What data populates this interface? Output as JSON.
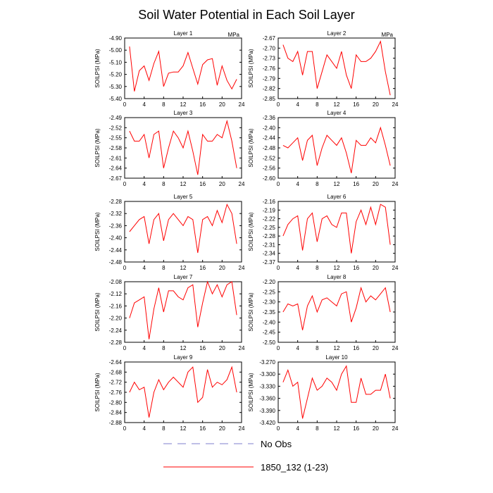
{
  "figure": {
    "title": "Soil Water Potential in Each Soil Layer",
    "legend": [
      {
        "label": "No Obs",
        "color": "#7f7fcc",
        "style": "dashed"
      },
      {
        "label": "1850_132 (1-23)",
        "color": "#ff0000",
        "style": "solid"
      }
    ]
  },
  "chart_data": [
    {
      "type": "line",
      "title": "Layer 1",
      "units": "MPa",
      "ylabel": "SOILPSI  (MPa)",
      "xlim": [
        0,
        24
      ],
      "ylim": [
        -5.4,
        -4.9
      ],
      "xticks": [
        "0",
        "4",
        "8",
        "12",
        "16",
        "20",
        "24"
      ],
      "yticks": [
        "-4.90",
        "-5.00",
        "-5.10",
        "-5.20",
        "-5.30",
        "-5.40"
      ],
      "series": [
        {
          "x": [
            1,
            2,
            3,
            4,
            5,
            6,
            7,
            8,
            9,
            10,
            11,
            12,
            13,
            14,
            15,
            16,
            17,
            18,
            19,
            20,
            21,
            22,
            23
          ],
          "y": [
            -4.97,
            -5.34,
            -5.17,
            -5.13,
            -5.25,
            -5.11,
            -5.01,
            -5.3,
            -5.19,
            -5.18,
            -5.18,
            -5.13,
            -5.02,
            -5.15,
            -5.28,
            -5.12,
            -5.08,
            -5.07,
            -5.29,
            -5.13,
            -5.25,
            -5.32,
            -5.24
          ],
          "color": "#ff0000"
        }
      ]
    },
    {
      "type": "line",
      "title": "Layer 2",
      "units": "MPa",
      "ylabel": "SOILPSI  (MPa)",
      "xlim": [
        0,
        24
      ],
      "ylim": [
        -2.85,
        -2.67
      ],
      "xticks": [
        "0",
        "4",
        "8",
        "12",
        "16",
        "20",
        "24"
      ],
      "yticks": [
        "-2.67",
        "-2.70",
        "-2.73",
        "-2.76",
        "-2.79",
        "-2.82",
        "-2.85"
      ],
      "series": [
        {
          "x": [
            1,
            2,
            3,
            4,
            5,
            6,
            7,
            8,
            9,
            10,
            11,
            12,
            13,
            14,
            15,
            16,
            17,
            18,
            19,
            20,
            21,
            22,
            23
          ],
          "y": [
            -2.69,
            -2.73,
            -2.74,
            -2.71,
            -2.78,
            -2.71,
            -2.71,
            -2.82,
            -2.77,
            -2.72,
            -2.74,
            -2.76,
            -2.71,
            -2.78,
            -2.82,
            -2.72,
            -2.74,
            -2.74,
            -2.73,
            -2.71,
            -2.68,
            -2.77,
            -2.84
          ],
          "color": "#ff0000"
        }
      ]
    },
    {
      "type": "line",
      "title": "Layer 3",
      "units": "",
      "ylabel": "SOILPSI  (MPa)",
      "xlim": [
        0,
        24
      ],
      "ylim": [
        -2.67,
        -2.49
      ],
      "xticks": [
        "0",
        "4",
        "8",
        "12",
        "16",
        "20",
        "24"
      ],
      "yticks": [
        "-2.49",
        "-2.52",
        "-2.55",
        "-2.58",
        "-2.61",
        "-2.64",
        "-2.67"
      ],
      "series": [
        {
          "x": [
            1,
            2,
            3,
            4,
            5,
            6,
            7,
            8,
            9,
            10,
            11,
            12,
            13,
            14,
            15,
            16,
            17,
            18,
            19,
            20,
            21,
            22,
            23
          ],
          "y": [
            -2.53,
            -2.56,
            -2.56,
            -2.54,
            -2.61,
            -2.54,
            -2.53,
            -2.64,
            -2.58,
            -2.53,
            -2.55,
            -2.58,
            -2.53,
            -2.59,
            -2.66,
            -2.54,
            -2.56,
            -2.56,
            -2.54,
            -2.55,
            -2.5,
            -2.56,
            -2.64
          ],
          "color": "#ff0000"
        }
      ]
    },
    {
      "type": "line",
      "title": "Layer 4",
      "units": "",
      "ylabel": "SOILPSI  (MPa)",
      "xlim": [
        0,
        24
      ],
      "ylim": [
        -2.6,
        -2.36
      ],
      "xticks": [
        "0",
        "4",
        "8",
        "12",
        "16",
        "20",
        "24"
      ],
      "yticks": [
        "-2.36",
        "-2.40",
        "-2.44",
        "-2.48",
        "-2.52",
        "-2.56",
        "-2.60"
      ],
      "series": [
        {
          "x": [
            1,
            2,
            3,
            4,
            5,
            6,
            7,
            8,
            9,
            10,
            11,
            12,
            13,
            14,
            15,
            16,
            17,
            18,
            19,
            20,
            21,
            22,
            23
          ],
          "y": [
            -2.47,
            -2.48,
            -2.46,
            -2.44,
            -2.53,
            -2.45,
            -2.43,
            -2.55,
            -2.48,
            -2.43,
            -2.45,
            -2.47,
            -2.44,
            -2.5,
            -2.58,
            -2.45,
            -2.47,
            -2.47,
            -2.44,
            -2.46,
            -2.4,
            -2.47,
            -2.55
          ],
          "color": "#ff0000"
        }
      ]
    },
    {
      "type": "line",
      "title": "Layer 5",
      "units": "",
      "ylabel": "SOILPSI  (MPa)",
      "xlim": [
        0,
        24
      ],
      "ylim": [
        -2.48,
        -2.28
      ],
      "xticks": [
        "0",
        "4",
        "8",
        "12",
        "16",
        "20",
        "24"
      ],
      "yticks": [
        "-2.28",
        "-2.32",
        "-2.36",
        "-2.40",
        "-2.44",
        "-2.48"
      ],
      "series": [
        {
          "x": [
            1,
            2,
            3,
            4,
            5,
            6,
            7,
            8,
            9,
            10,
            11,
            12,
            13,
            14,
            15,
            16,
            17,
            18,
            19,
            20,
            21,
            22,
            23
          ],
          "y": [
            -2.38,
            -2.36,
            -2.34,
            -2.33,
            -2.42,
            -2.34,
            -2.32,
            -2.41,
            -2.34,
            -2.32,
            -2.34,
            -2.36,
            -2.33,
            -2.34,
            -2.45,
            -2.34,
            -2.33,
            -2.36,
            -2.31,
            -2.35,
            -2.29,
            -2.32,
            -2.42
          ],
          "color": "#ff0000"
        }
      ]
    },
    {
      "type": "line",
      "title": "Layer 6",
      "units": "",
      "ylabel": "SOILPSI  (MPa)",
      "xlim": [
        0,
        24
      ],
      "ylim": [
        -2.37,
        -2.16
      ],
      "xticks": [
        "0",
        "4",
        "8",
        "12",
        "16",
        "20",
        "24"
      ],
      "yticks": [
        "-2.16",
        "-2.19",
        "-2.22",
        "-2.25",
        "-2.28",
        "-2.31",
        "-2.34",
        "-2.37"
      ],
      "series": [
        {
          "x": [
            1,
            2,
            3,
            4,
            5,
            6,
            7,
            8,
            9,
            10,
            11,
            12,
            13,
            14,
            15,
            16,
            17,
            18,
            19,
            20,
            21,
            22,
            23
          ],
          "y": [
            -2.28,
            -2.24,
            -2.22,
            -2.21,
            -2.33,
            -2.22,
            -2.2,
            -2.3,
            -2.22,
            -2.21,
            -2.24,
            -2.25,
            -2.2,
            -2.2,
            -2.34,
            -2.23,
            -2.19,
            -2.24,
            -2.18,
            -2.24,
            -2.17,
            -2.18,
            -2.31
          ],
          "color": "#ff0000"
        }
      ]
    },
    {
      "type": "line",
      "title": "Layer 7",
      "units": "",
      "ylabel": "SOILPSI  (MPa)",
      "xlim": [
        0,
        24
      ],
      "ylim": [
        -2.28,
        -2.08
      ],
      "xticks": [
        "0",
        "4",
        "8",
        "12",
        "16",
        "20",
        "24"
      ],
      "yticks": [
        "-2.08",
        "-2.12",
        "-2.16",
        "-2.20",
        "-2.24",
        "-2.28"
      ],
      "series": [
        {
          "x": [
            1,
            2,
            3,
            4,
            5,
            6,
            7,
            8,
            9,
            10,
            11,
            12,
            13,
            14,
            15,
            16,
            17,
            18,
            19,
            20,
            21,
            22,
            23
          ],
          "y": [
            -2.2,
            -2.15,
            -2.14,
            -2.13,
            -2.27,
            -2.17,
            -2.1,
            -2.18,
            -2.11,
            -2.11,
            -2.13,
            -2.14,
            -2.1,
            -2.09,
            -2.23,
            -2.15,
            -2.08,
            -2.12,
            -2.09,
            -2.13,
            -2.09,
            -2.08,
            -2.19
          ],
          "color": "#ff0000"
        }
      ]
    },
    {
      "type": "line",
      "title": "Layer 8",
      "units": "",
      "ylabel": "SOILPSI  (MPa)",
      "xlim": [
        0,
        24
      ],
      "ylim": [
        -2.5,
        -2.2
      ],
      "xticks": [
        "0",
        "4",
        "8",
        "12",
        "16",
        "20",
        "24"
      ],
      "yticks": [
        "-2.20",
        "-2.25",
        "-2.30",
        "-2.35",
        "-2.40",
        "-2.45",
        "-2.50"
      ],
      "series": [
        {
          "x": [
            1,
            2,
            3,
            4,
            5,
            6,
            7,
            8,
            9,
            10,
            11,
            12,
            13,
            14,
            15,
            16,
            17,
            18,
            19,
            20,
            21,
            22,
            23
          ],
          "y": [
            -2.35,
            -2.31,
            -2.32,
            -2.31,
            -2.44,
            -2.32,
            -2.27,
            -2.35,
            -2.29,
            -2.28,
            -2.3,
            -2.32,
            -2.26,
            -2.25,
            -2.4,
            -2.33,
            -2.23,
            -2.3,
            -2.27,
            -2.29,
            -2.26,
            -2.23,
            -2.35
          ],
          "color": "#ff0000"
        }
      ]
    },
    {
      "type": "line",
      "title": "Layer 9",
      "units": "",
      "ylabel": "SOILPSI  (MPa)",
      "xlim": [
        0,
        24
      ],
      "ylim": [
        -2.88,
        -2.64
      ],
      "xticks": [
        "0",
        "4",
        "8",
        "12",
        "16",
        "20",
        "24"
      ],
      "yticks": [
        "-2.64",
        "-2.68",
        "-2.72",
        "-2.76",
        "-2.80",
        "-2.84",
        "-2.88"
      ],
      "series": [
        {
          "x": [
            1,
            2,
            3,
            4,
            5,
            6,
            7,
            8,
            9,
            10,
            11,
            12,
            13,
            14,
            15,
            16,
            17,
            18,
            19,
            20,
            21,
            22,
            23
          ],
          "y": [
            -2.76,
            -2.72,
            -2.75,
            -2.74,
            -2.86,
            -2.76,
            -2.71,
            -2.75,
            -2.72,
            -2.7,
            -2.72,
            -2.74,
            -2.68,
            -2.66,
            -2.8,
            -2.78,
            -2.67,
            -2.74,
            -2.72,
            -2.73,
            -2.71,
            -2.66,
            -2.76
          ],
          "color": "#ff0000"
        }
      ]
    },
    {
      "type": "line",
      "title": "Layer 10",
      "units": "",
      "ylabel": "SOILPSI  (MPa)",
      "xlim": [
        0,
        24
      ],
      "ylim": [
        -3.42,
        -3.27
      ],
      "xticks": [
        "0",
        "4",
        "8",
        "12",
        "16",
        "20",
        "24"
      ],
      "yticks": [
        "-3.270",
        "-3.300",
        "-3.330",
        "-3.360",
        "-3.390",
        "-3.420"
      ],
      "series": [
        {
          "x": [
            1,
            2,
            3,
            4,
            5,
            6,
            7,
            8,
            9,
            10,
            11,
            12,
            13,
            14,
            15,
            16,
            17,
            18,
            19,
            20,
            21,
            22,
            23
          ],
          "y": [
            -3.32,
            -3.29,
            -3.33,
            -3.32,
            -3.41,
            -3.36,
            -3.31,
            -3.34,
            -3.33,
            -3.31,
            -3.32,
            -3.34,
            -3.3,
            -3.28,
            -3.37,
            -3.37,
            -3.31,
            -3.35,
            -3.35,
            -3.34,
            -3.34,
            -3.3,
            -3.36
          ],
          "color": "#ff0000"
        }
      ]
    }
  ]
}
